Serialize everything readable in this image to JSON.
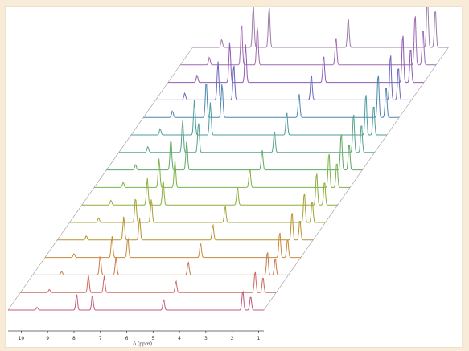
{
  "chart_data": {
    "type": "line",
    "subtype": "stacked-waterfall-spectra",
    "title": "",
    "xlabel": "δ (ppm)",
    "ylabel": "",
    "xlim": [
      10.5,
      0.8
    ],
    "x_reversed": true,
    "x_ticks": [
      "10",
      "9",
      "8",
      "7",
      "6",
      "5",
      "4",
      "3",
      "2",
      "1"
    ],
    "legend": "none",
    "grid": false,
    "series_count": 16,
    "series_colors": [
      "#c0587c",
      "#cc6a60",
      "#c97a4c",
      "#c88a3e",
      "#b59430",
      "#a7a233",
      "#8fae3c",
      "#7cb24a",
      "#5fa964",
      "#58a38a",
      "#4f9d9b",
      "#4f86b0",
      "#6a6abd",
      "#8e5bb6",
      "#a06ab0",
      "#9c7ea8"
    ],
    "peaks_ppm": [
      {
        "x": 7.9,
        "height": 0.45
      },
      {
        "x": 7.3,
        "height": 0.42
      },
      {
        "x": 4.6,
        "height": 0.3
      },
      {
        "x": 1.6,
        "height": 0.55
      },
      {
        "x": 1.3,
        "height": 0.4
      },
      {
        "x": 9.4,
        "height": 0.08
      }
    ]
  }
}
